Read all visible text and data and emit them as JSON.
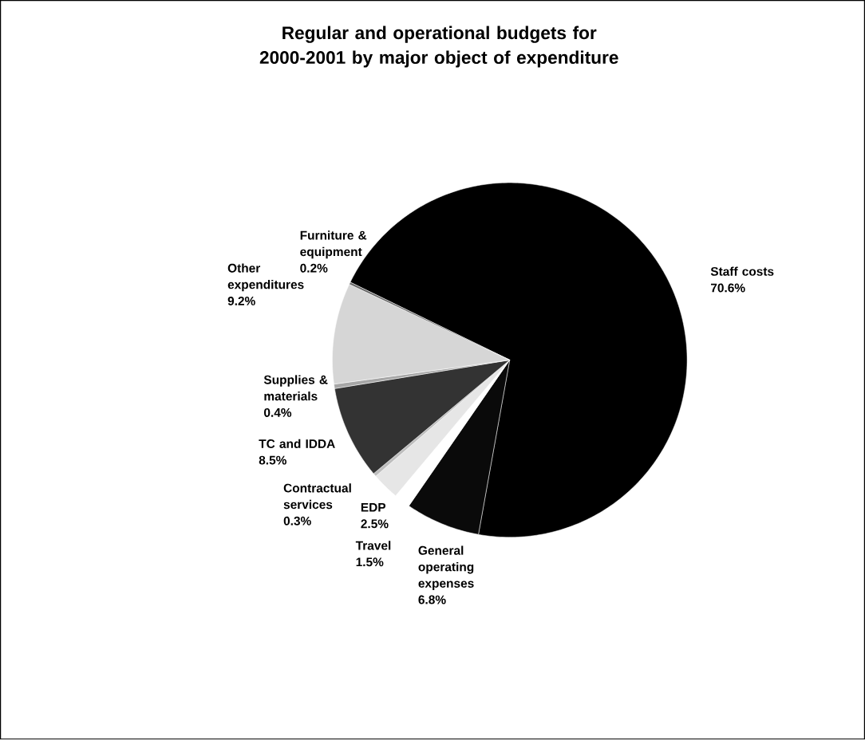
{
  "chart_data": {
    "type": "pie",
    "title": "Regular and operational budgets for 2000-2001 by major object of expenditure",
    "categories": [
      "Staff costs",
      "General operating expenses",
      "Travel",
      "EDP",
      "Contractual services",
      "TC and IDDA",
      "Supplies & materials",
      "Other expenditures",
      "Furniture & equipment"
    ],
    "values": [
      70.6,
      6.8,
      1.5,
      2.5,
      0.3,
      8.5,
      0.4,
      9.2,
      0.2
    ],
    "value_labels": [
      "70.6%",
      "6.8%",
      "1.5%",
      "2.5%",
      "0.3%",
      "8.5%",
      "0.4%",
      "9.2%",
      "0.2%"
    ],
    "colors": [
      "#000000",
      "#0a0a0a",
      "#ffffff",
      "#e6e6e6",
      "#bdbdbd",
      "#333333",
      "#a6a6a6",
      "#d6d6d6",
      "#666666"
    ]
  }
}
